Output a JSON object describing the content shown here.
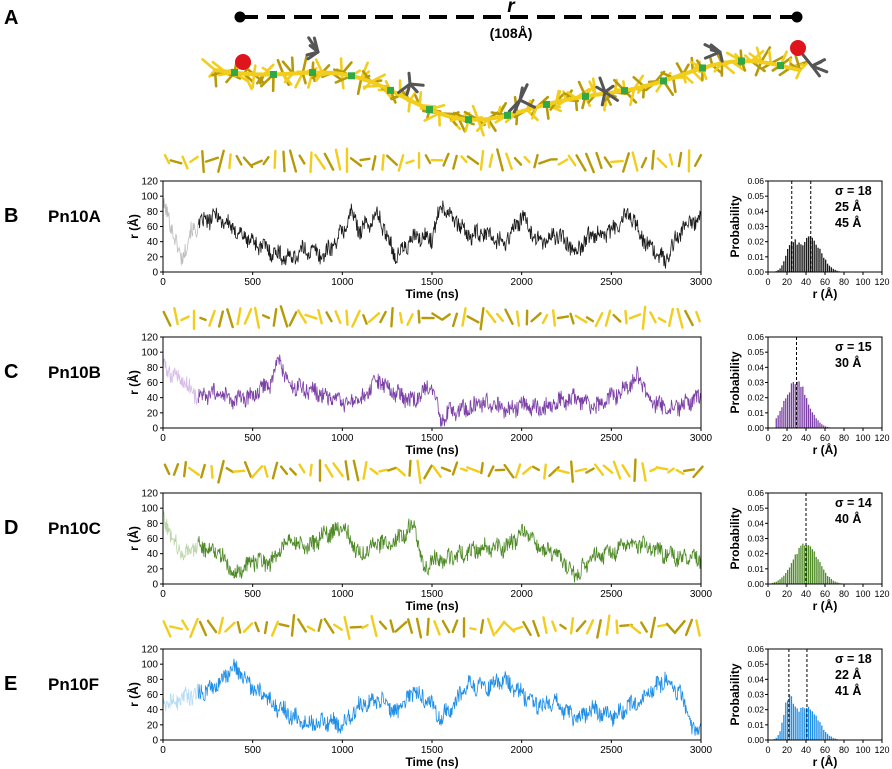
{
  "figure": {
    "panel_a": {
      "letter": "A",
      "distance_symbol": "r",
      "distance_value": "(108Å)"
    }
  },
  "colors": {
    "peptide_yellow": "#f2cd1c",
    "peptide_dark_yellow": "#b89a08",
    "residue_green": "#2fa845",
    "residue_grey": "#555555",
    "terminal_red": "#e0141c"
  },
  "chart_data": [
    {
      "type": "line",
      "panel": "B",
      "name": "Pn10A",
      "color": "#1a1a1a",
      "light_color": "#bdbdbd",
      "xlabel": "Time (ns)",
      "ylabel": "r (Å)",
      "xlim": [
        0,
        3000
      ],
      "ylim": [
        0,
        120
      ],
      "xticks": [
        0,
        500,
        1000,
        1500,
        2000,
        2500,
        3000
      ],
      "yticks": [
        0,
        20,
        40,
        60,
        80,
        100,
        120
      ],
      "light_until": 200,
      "x": [
        0,
        50,
        100,
        150,
        200,
        300,
        400,
        500,
        600,
        700,
        800,
        900,
        1000,
        1050,
        1100,
        1200,
        1300,
        1400,
        1500,
        1550,
        1600,
        1700,
        1800,
        1900,
        2000,
        2100,
        2200,
        2300,
        2400,
        2500,
        2600,
        2700,
        2800,
        2900,
        3000
      ],
      "y": [
        88,
        60,
        15,
        50,
        62,
        75,
        55,
        40,
        28,
        18,
        30,
        22,
        52,
        78,
        55,
        75,
        20,
        45,
        45,
        90,
        78,
        48,
        50,
        38,
        72,
        38,
        50,
        28,
        52,
        52,
        78,
        35,
        15,
        60,
        70
      ]
    },
    {
      "type": "bar",
      "panel": "B",
      "name": "Pn10A distribution",
      "color": "#1a1a1a",
      "xlabel": "r (Å)",
      "ylabel": "Probability",
      "xlim": [
        0,
        120
      ],
      "ylim": [
        0,
        0.06
      ],
      "xticks": [
        0,
        20,
        40,
        60,
        80,
        100,
        120
      ],
      "yticks": [
        0.0,
        0.01,
        0.02,
        0.03,
        0.04,
        0.05,
        0.06
      ],
      "bin_width": 2,
      "bins": [
        {
          "start": 6,
          "end": 88
        }
      ],
      "peaks": [
        {
          "mean": 25,
          "sd": 6,
          "amp": 0.016
        },
        {
          "mean": 45,
          "sd": 11,
          "amp": 0.022
        }
      ],
      "dashed_lines": [
        25,
        45
      ],
      "annotations": [
        "σ = 18",
        "25 Å",
        "45 Å"
      ]
    },
    {
      "type": "line",
      "panel": "C",
      "name": "Pn10B",
      "color": "#7b3fa6",
      "light_color": "#d6bde6",
      "xlabel": "Time (ns)",
      "ylabel": "r (Å)",
      "xlim": [
        0,
        3000
      ],
      "ylim": [
        0,
        120
      ],
      "xticks": [
        0,
        500,
        1000,
        1500,
        2000,
        2500,
        3000
      ],
      "yticks": [
        0,
        20,
        40,
        60,
        80,
        100,
        120
      ],
      "light_until": 200,
      "x": [
        0,
        100,
        200,
        300,
        400,
        500,
        600,
        650,
        700,
        800,
        900,
        1000,
        1100,
        1200,
        1300,
        1400,
        1500,
        1550,
        1600,
        1700,
        1800,
        1900,
        2000,
        2100,
        2200,
        2300,
        2400,
        2500,
        2600,
        2650,
        2700,
        2800,
        2900,
        3000
      ],
      "y": [
        80,
        65,
        40,
        45,
        35,
        42,
        60,
        92,
        55,
        52,
        42,
        32,
        35,
        62,
        45,
        35,
        58,
        10,
        22,
        25,
        35,
        22,
        30,
        25,
        35,
        40,
        25,
        40,
        55,
        70,
        40,
        25,
        30,
        40
      ]
    },
    {
      "type": "bar",
      "panel": "C",
      "name": "Pn10B distribution",
      "color": "#7b3fa6",
      "xlabel": "r (Å)",
      "ylabel": "Probability",
      "xlim": [
        0,
        120
      ],
      "ylim": [
        0,
        0.06
      ],
      "xticks": [
        0,
        20,
        40,
        60,
        80,
        100,
        120
      ],
      "yticks": [
        0.0,
        0.01,
        0.02,
        0.03,
        0.04,
        0.05,
        0.06
      ],
      "bin_width": 2,
      "bins": [
        {
          "start": 8,
          "end": 82
        }
      ],
      "peaks": [
        {
          "mean": 30,
          "sd": 12,
          "amp": 0.03
        }
      ],
      "dashed_lines": [
        30
      ],
      "annotations": [
        "σ = 15",
        "30 Å"
      ]
    },
    {
      "type": "line",
      "panel": "D",
      "name": "Pn10C",
      "color": "#4e8a26",
      "light_color": "#bcd6aa",
      "xlabel": "Time (ns)",
      "ylabel": "r (Å)",
      "xlim": [
        0,
        3000
      ],
      "ylim": [
        0,
        120
      ],
      "xticks": [
        0,
        500,
        1000,
        1500,
        2000,
        2500,
        3000
      ],
      "yticks": [
        0,
        20,
        40,
        60,
        80,
        100,
        120
      ],
      "light_until": 200,
      "x": [
        0,
        100,
        200,
        300,
        400,
        500,
        600,
        700,
        800,
        900,
        1000,
        1100,
        1200,
        1300,
        1400,
        1450,
        1500,
        1600,
        1700,
        1800,
        1900,
        2000,
        2050,
        2100,
        2200,
        2300,
        2400,
        2500,
        2600,
        2700,
        2800,
        2900,
        3000
      ],
      "y": [
        88,
        40,
        50,
        45,
        12,
        30,
        28,
        60,
        45,
        65,
        75,
        38,
        55,
        55,
        80,
        20,
        30,
        35,
        40,
        50,
        48,
        65,
        70,
        45,
        40,
        10,
        35,
        40,
        55,
        50,
        40,
        35,
        30
      ]
    },
    {
      "type": "bar",
      "panel": "D",
      "name": "Pn10C distribution",
      "color": "#4e8a26",
      "xlabel": "r (Å)",
      "ylabel": "Probability",
      "xlim": [
        0,
        120
      ],
      "ylim": [
        0,
        0.06
      ],
      "xticks": [
        0,
        20,
        40,
        60,
        80,
        100,
        120
      ],
      "yticks": [
        0.0,
        0.01,
        0.02,
        0.03,
        0.04,
        0.05,
        0.06
      ],
      "bin_width": 2,
      "bins": [
        {
          "start": 4,
          "end": 84
        }
      ],
      "peaks": [
        {
          "mean": 40,
          "sd": 13,
          "amp": 0.027
        }
      ],
      "dashed_lines": [
        40
      ],
      "annotations": [
        "σ = 14",
        "40 Å"
      ]
    },
    {
      "type": "line",
      "panel": "E",
      "name": "Pn10F",
      "color": "#1f8ee6",
      "light_color": "#b5dcf6",
      "xlabel": "Time (ns)",
      "ylabel": "r (Å)",
      "xlim": [
        0,
        3000
      ],
      "ylim": [
        0,
        120
      ],
      "xticks": [
        0,
        500,
        1000,
        1500,
        2000,
        2500,
        3000
      ],
      "yticks": [
        0,
        20,
        40,
        60,
        80,
        100,
        120
      ],
      "light_until": 200,
      "x": [
        0,
        100,
        200,
        300,
        400,
        450,
        500,
        600,
        700,
        800,
        900,
        1000,
        1100,
        1200,
        1300,
        1400,
        1500,
        1550,
        1600,
        1700,
        1800,
        1900,
        2000,
        2100,
        2200,
        2300,
        2400,
        2500,
        2600,
        2700,
        2800,
        2900,
        2950,
        3000
      ],
      "y": [
        45,
        55,
        62,
        75,
        95,
        82,
        68,
        50,
        35,
        22,
        25,
        20,
        45,
        55,
        35,
        65,
        45,
        30,
        40,
        75,
        70,
        80,
        60,
        45,
        50,
        25,
        40,
        30,
        45,
        60,
        80,
        55,
        10,
        15
      ]
    },
    {
      "type": "bar",
      "panel": "E",
      "name": "Pn10F distribution",
      "color": "#1f8ee6",
      "xlabel": "r (Å)",
      "ylabel": "Probability",
      "xlim": [
        0,
        120
      ],
      "ylim": [
        0,
        0.06
      ],
      "xticks": [
        0,
        20,
        40,
        60,
        80,
        100,
        120
      ],
      "yticks": [
        0.0,
        0.01,
        0.02,
        0.03,
        0.04,
        0.05,
        0.06
      ],
      "bin_width": 2,
      "bins": [
        {
          "start": 4,
          "end": 90
        }
      ],
      "peaks": [
        {
          "mean": 22,
          "sd": 5,
          "amp": 0.023
        },
        {
          "mean": 41,
          "sd": 12,
          "amp": 0.022
        }
      ],
      "dashed_lines": [
        22,
        41
      ],
      "annotations": [
        "σ = 18",
        "22 Å",
        "41 Å"
      ]
    }
  ]
}
